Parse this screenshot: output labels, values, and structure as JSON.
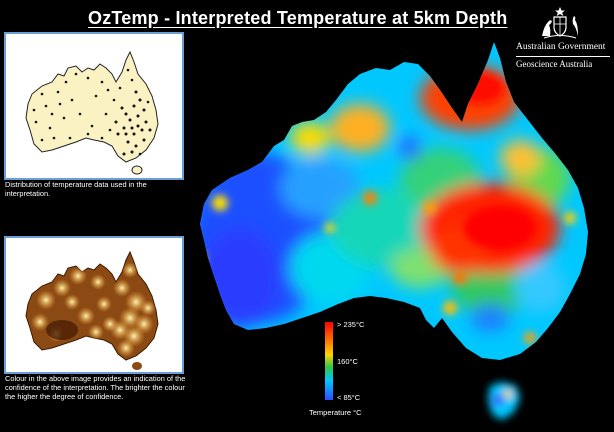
{
  "header": {
    "title": "OzTemp - Interpreted Temperature at 5km Depth"
  },
  "branding": {
    "government": "Australian Government",
    "agency": "Geoscience Australia",
    "crest_icon": "coat-of-arms-icon"
  },
  "insets": {
    "top_caption": "Distribution of temperature data used in the interpretation.",
    "bottom_caption": "Colour in the above image provides an indication of the confidence of the interpretation. The brighter the colour the higher the degree of confidence."
  },
  "legend": {
    "max_label": "> 235°C",
    "mid_label": "160°C",
    "min_label": "< 85°C",
    "title": "Temperature °C"
  },
  "colors": {
    "background": "#000000",
    "inset_border": "#6a9fd6",
    "hot": "#ff0000",
    "warm": "#ffd400",
    "cool": "#00c8ff",
    "cold": "#2a4dff",
    "data_base": "#fbf2c4",
    "confidence_base": "#8b4a14"
  }
}
